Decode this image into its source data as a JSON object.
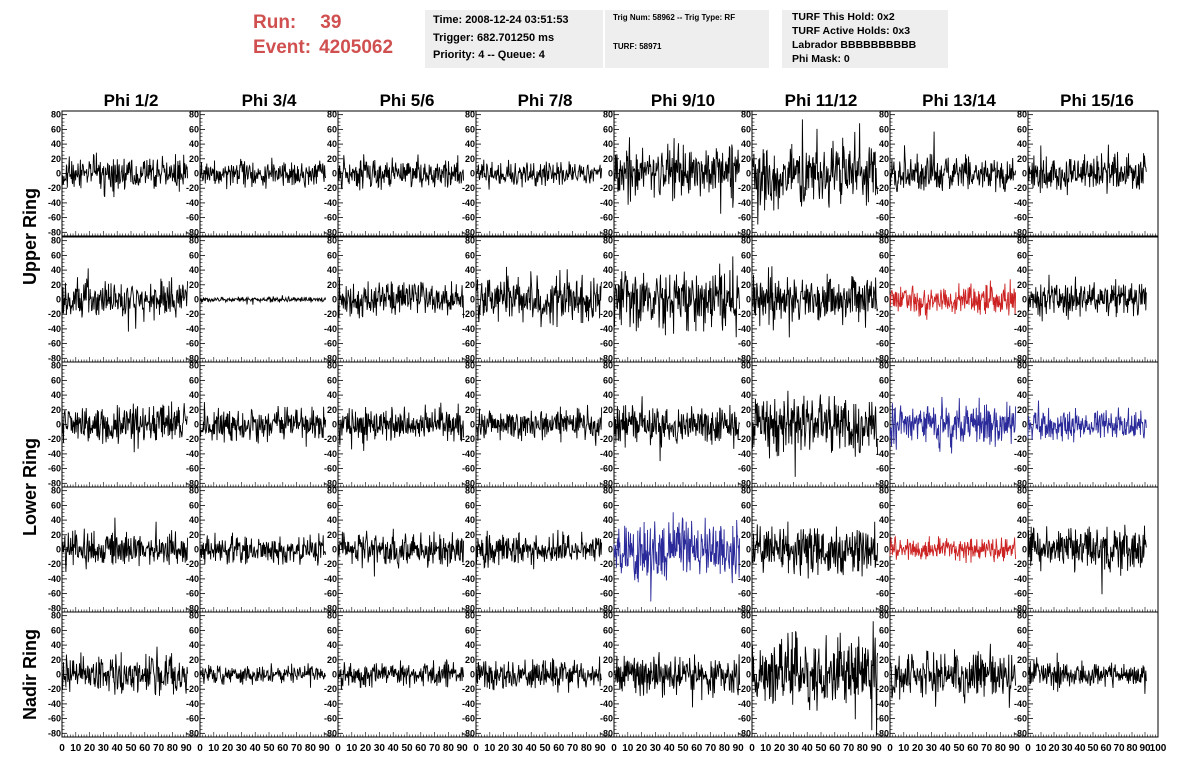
{
  "header": {
    "run_label": "Run:",
    "run_value": "39",
    "event_label": "Event:",
    "event_value": "4205062",
    "time_line": "Time: 2008-12-24 03:51:53",
    "trigger_line": "Trigger: 682.701250 ms",
    "priority_line": "Priority: 4 -- Queue: 4",
    "trig_line": "Trig Num: 58962 -- Trig Type: RF",
    "turf_line": "TURF: 58971",
    "turf_hold_line": "TURF This Hold: 0x2",
    "turf_active_line": "TURF Active Holds: 0x3",
    "labrador_line": "Labrador BBBBBBBBBB",
    "phi_mask_line": "Phi Mask: 0"
  },
  "chart_data": {
    "type": "line",
    "columns": [
      "Phi 1/2",
      "Phi 3/4",
      "Phi 5/6",
      "Phi 7/8",
      "Phi 9/10",
      "Phi 11/12",
      "Phi 13/14",
      "Phi 15/16"
    ],
    "row_groups": [
      {
        "label": "Upper Ring",
        "rows": [
          0,
          1
        ]
      },
      {
        "label": "Lower Ring",
        "rows": [
          2,
          3
        ]
      },
      {
        "label": "Nadir Ring",
        "rows": [
          4
        ]
      }
    ],
    "xlim": [
      0,
      100
    ],
    "x_tick_step": 10,
    "ylim": [
      -85,
      85
    ],
    "y_ticks": [
      80,
      60,
      40,
      20,
      0,
      -20,
      -40,
      -60,
      -80
    ],
    "samples_per_trace": 260,
    "trace_extent": [
      0,
      91
    ],
    "colors": {
      "normal": "#000000",
      "red": "#cc2222",
      "blue": "#2a2a9a"
    },
    "amplitudes": [
      [
        14,
        10,
        13,
        10,
        24,
        24,
        14,
        15
      ],
      [
        15,
        2,
        14,
        19,
        26,
        20,
        12,
        14
      ],
      [
        16,
        14,
        14,
        13,
        16,
        24,
        18,
        12
      ],
      [
        14,
        12,
        14,
        13,
        26,
        20,
        10,
        18
      ],
      [
        16,
        8,
        10,
        12,
        16,
        30,
        20,
        10
      ]
    ],
    "trace_colors": [
      [
        "normal",
        "normal",
        "normal",
        "normal",
        "normal",
        "normal",
        "normal",
        "normal"
      ],
      [
        "normal",
        "normal",
        "normal",
        "normal",
        "normal",
        "normal",
        "red",
        "normal"
      ],
      [
        "normal",
        "normal",
        "normal",
        "normal",
        "normal",
        "normal",
        "blue",
        "blue"
      ],
      [
        "normal",
        "normal",
        "normal",
        "normal",
        "blue",
        "normal",
        "red",
        "normal"
      ],
      [
        "normal",
        "normal",
        "normal",
        "normal",
        "normal",
        "normal",
        "normal",
        "normal"
      ]
    ]
  }
}
